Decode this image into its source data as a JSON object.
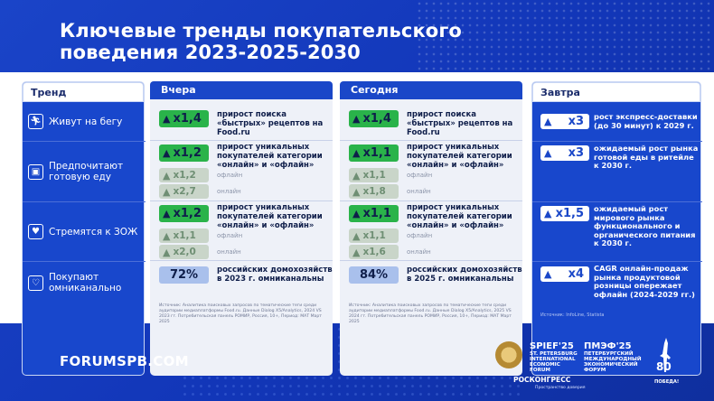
{
  "title": {
    "line1": "Ключевые тренды покупательского",
    "line2": "поведения 2023-2025-2030"
  },
  "columns": {
    "trend": "Тренд",
    "yesterday": "Вчера",
    "today": "Сегодня",
    "tomorrow": "Завтра"
  },
  "trends": [
    {
      "icon": "running-person-icon",
      "label": "Живут на бегу"
    },
    {
      "icon": "ready-meal-icon",
      "label": "Предпочитают готовую еду"
    },
    {
      "icon": "apple-heart-icon",
      "label": "Стремятся к ЗОЖ"
    },
    {
      "icon": "laptop-heart-icon",
      "label": "Покупают омниканально"
    }
  ],
  "yesterday": {
    "run": {
      "value": "x1,4",
      "text": "прирост поиска «быстрых» рецептов на Food.ru"
    },
    "meal": {
      "value": "x1,2",
      "text": "прирост уникальных покупателей категории «онлайн» и «офлайн»",
      "sub": [
        {
          "value": "x1,2",
          "text": "офлайн"
        },
        {
          "value": "x2,7",
          "text": "онлайн"
        }
      ]
    },
    "zoj": {
      "value": "x1,2",
      "text": "прирост уникальных покупателей категории «онлайн» и «офлайн»",
      "sub": [
        {
          "value": "x1,1",
          "text": "офлайн"
        },
        {
          "value": "x2,0",
          "text": "онлайн"
        }
      ]
    },
    "omni": {
      "value": "72%",
      "text": "российских домохозяйств в 2023 г. омниканальны"
    },
    "source": "Источник: Аналитика поисковых запросов по тематические теги среди аудитории медиаплатформы Food.ru. Данные Dialog X5/Analytics, 2024 VS 2023 гг. Потребительская панель РОМИР, Россия, 10+, Период: МАТ Март 2025"
  },
  "today": {
    "run": {
      "value": "x1,4",
      "text": "прирост поиска «быстрых» рецептов на Food.ru"
    },
    "meal": {
      "value": "x1,1",
      "text": "прирост уникальных покупателей категории «онлайн» и «офлайн»",
      "sub": [
        {
          "value": "x1,1",
          "text": "офлайн"
        },
        {
          "value": "x1,8",
          "text": "онлайн"
        }
      ]
    },
    "zoj": {
      "value": "x1,1",
      "text": "прирост уникальных покупателей категории «онлайн» и «офлайн»",
      "sub": [
        {
          "value": "x1,1",
          "text": "офлайн"
        },
        {
          "value": "x1,6",
          "text": "онлайн"
        }
      ]
    },
    "omni": {
      "value": "84%",
      "text": "российских домохозяйств в 2025 г. омниканальны"
    },
    "source": "Источник: Аналитика поисковых запросов по тематические теги среди аудитории медиаплатформы Food.ru. Данные Dialog X5/Analytics, 2025 VS 2024 гг. Потребительская панель РОМИР, Россия, 10+, Период: МАТ Март 2025"
  },
  "tomorrow": {
    "run": {
      "value": "x3",
      "text": "рост экспресс-доставки (до 30 минут) к 2029 г."
    },
    "meal": {
      "value": "x3",
      "text": "ожидаемый рост рынка готовой еды в ритейле к 2030 г."
    },
    "zoj": {
      "value": "x1,5",
      "text": "ожидаемый рост мирового рынка функционального и органического питания к 2030 г."
    },
    "omni": {
      "value": "x4",
      "text": "CAGR онлайн-продаж рынка продуктовой розницы опережает офлайн (2024-2029 гг.)"
    },
    "source": "Источник: InfoLine, Statista"
  },
  "footer": {
    "url": "FORUMSPB.COM",
    "spief_title": "SPIEF'25",
    "spief_sub": [
      "ST. PETERSBURG",
      "INTERNATIONAL",
      "ECONOMIC",
      "FORUM"
    ],
    "pmef_title": "ПМЭФ'25",
    "pmef_sub": [
      "ПЕТЕРБУРГСКИЙ",
      "МЕЖДУНАРОДНЫЙ",
      "ЭКОНОМИЧЕСКИЙ",
      "ФОРУМ"
    ],
    "roscongress": "РОСКОНГРЕСС",
    "roscongress_sub": "Пространство доверия",
    "victory_number": "80",
    "victory_text": "ПОБЕДА!"
  },
  "colors": {
    "brand_blue": "#1847cc",
    "growth_green": "#2ab34a",
    "panel_bg": "#eef1f8"
  }
}
